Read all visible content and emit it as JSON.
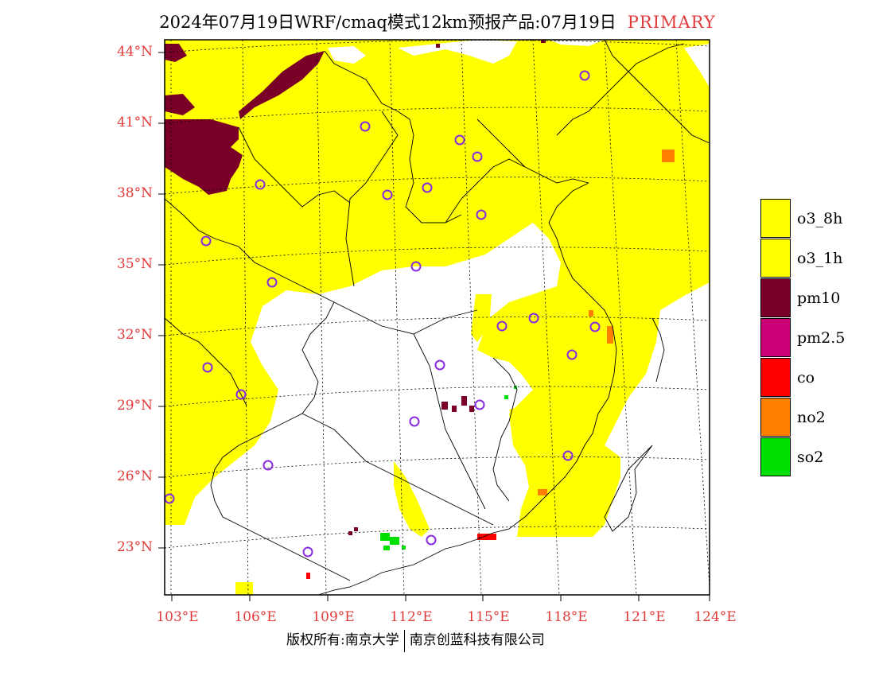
{
  "header": {
    "title": "2024年07月19日WRF/cmaq模式12km预报产品:07月19日",
    "tag": "PRIMARY"
  },
  "map": {
    "lat_labels": [
      "44°N",
      "41°N",
      "38°N",
      "35°N",
      "32°N",
      "29°N",
      "26°N",
      "23°N"
    ],
    "lon_labels": [
      "103°E",
      "106°E",
      "109°E",
      "112°E",
      "115°E",
      "118°E",
      "121°E",
      "124°E"
    ]
  },
  "legend": {
    "items": [
      {
        "label": "o3_8h",
        "color": "#ffff00"
      },
      {
        "label": "o3_1h",
        "color": "#ffff00"
      },
      {
        "label": "pm10",
        "color": "#7a0028"
      },
      {
        "label": "pm2.5",
        "color": "#cc0077"
      },
      {
        "label": "co",
        "color": "#ff0000"
      },
      {
        "label": "no2",
        "color": "#ff7f00"
      },
      {
        "label": "so2",
        "color": "#00e000"
      }
    ]
  },
  "footer": {
    "left": "版权所有:南京大学",
    "right": "南京创蓝科技有限公司"
  }
}
